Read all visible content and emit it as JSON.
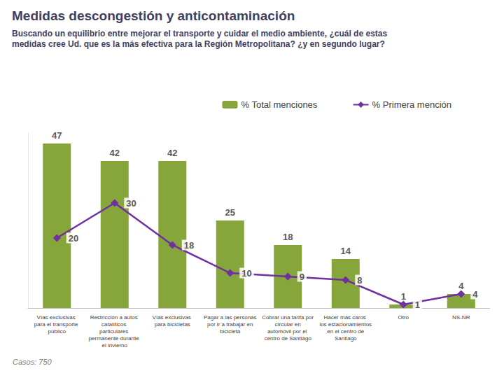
{
  "chart_data": {
    "type": "bar",
    "title": "Medidas descongestión y anticontaminación",
    "subtitle": "Buscando un equilibrio entre mejorar el transporte y cuidar el medio ambiente, ¿cuál de estas medidas cree Ud. que es la más efectiva para la Región Metropolitana? ¿y en segundo lugar?",
    "annotations": [
      "Casos: 750"
    ],
    "categories": [
      "Vías exclusivas para el transporte público",
      "Restricción a autos catalíticos particulares permanente durante el invierno",
      "Vías exclusivas para bicicletas",
      "Pagar a las personas por ir a trabajar en bicicleta",
      "Cobrar una tarifa por circular en automóvil por el centro de Santiago",
      "Hacer más caros los estacionamientos en el centro de Santiago",
      "Otro",
      "NS-NR"
    ],
    "series": [
      {
        "name": "% Total menciones",
        "type": "bar",
        "color": "#86a53a",
        "values": [
          47,
          42,
          42,
          25,
          18,
          14,
          1,
          4
        ]
      },
      {
        "name": "% Primera mención",
        "type": "line",
        "color": "#7030a0",
        "marker": "diamond",
        "values": [
          20,
          30,
          18,
          10,
          9,
          8,
          1,
          4
        ]
      }
    ],
    "ylim": [
      0,
      50
    ],
    "legend": "top-right",
    "data_labels": true,
    "tick_labels": "x",
    "grid": false
  }
}
